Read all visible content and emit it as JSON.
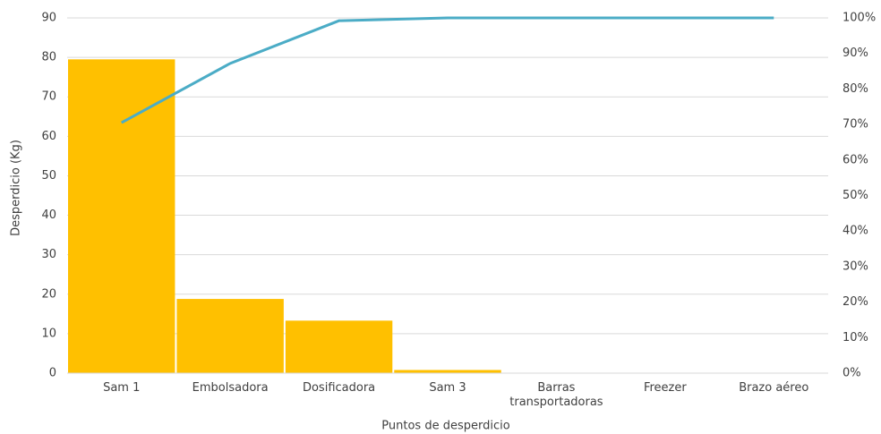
{
  "chart_data": {
    "type": "bar",
    "x_label": "Puntos de desperdicio",
    "y_label": "Desperdicio (Kg)",
    "categories": [
      "Sam 1",
      "Embolsadora",
      "Dosificadora",
      "Sam 3",
      "Barras transportadoras",
      "Freezer",
      "Brazo aéreo"
    ],
    "series": [
      {
        "type": "bar",
        "color": "#ffc000",
        "values": [
          79.5,
          18.8,
          13.3,
          0.8,
          0,
          0,
          0
        ]
      },
      {
        "type": "line",
        "axis": "y2",
        "color": "#4bacc6",
        "values": [
          70.5,
          87.2,
          99.2,
          100,
          100,
          100,
          100
        ]
      }
    ],
    "ylim": [
      0,
      90
    ],
    "yticks": [
      0,
      10,
      20,
      30,
      40,
      50,
      60,
      70,
      80,
      90
    ],
    "y2lim": [
      0,
      100
    ],
    "y2ticks": [
      {
        "value": 0,
        "label": "0%"
      },
      {
        "value": 10,
        "label": "10%"
      },
      {
        "value": 20,
        "label": "20%"
      },
      {
        "value": 30,
        "label": "30%"
      },
      {
        "value": 40,
        "label": "40%"
      },
      {
        "value": 50,
        "label": "50%"
      },
      {
        "value": 60,
        "label": "60%"
      },
      {
        "value": 70,
        "label": "70%"
      },
      {
        "value": 80,
        "label": "80%"
      },
      {
        "value": 90,
        "label": "90%"
      },
      {
        "value": 100,
        "label": "100%"
      }
    ],
    "grid": true
  }
}
